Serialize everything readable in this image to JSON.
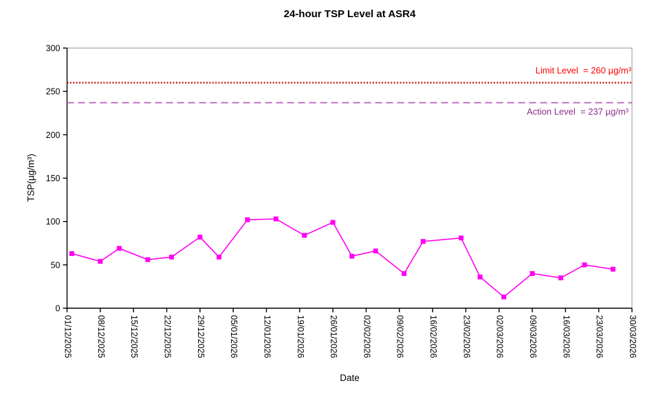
{
  "chart_data": {
    "type": "line",
    "title": "24-hour TSP Level at ASR4",
    "xlabel": "Date",
    "ylabel": "TSP(µg/m³)",
    "ylim": [
      0,
      300
    ],
    "yticks": [
      0,
      50,
      100,
      150,
      200,
      250,
      300
    ],
    "xtick_labels": [
      "01/12/2025",
      "08/12/2025",
      "15/12/2025",
      "22/12/2025",
      "29/12/2025",
      "05/01/2026",
      "12/01/2026",
      "19/01/2026",
      "26/01/2026",
      "02/02/2026",
      "09/02/2026",
      "16/02/2026",
      "23/02/2026",
      "02/03/2026",
      "09/03/2026",
      "16/03/2026",
      "23/03/2026",
      "30/03/2026"
    ],
    "x_axis": {
      "start": "01/12/2025",
      "end": "30/03/2026",
      "span_days": 119,
      "tick_interval_days": 7
    },
    "grid": false,
    "legend": false,
    "reference_lines": [
      {
        "name": "Limit Level",
        "value": 260,
        "label": "Limit Level  = 260 µg/m³",
        "style": "dotted",
        "line_color": "#C00000",
        "text_color": "#FF0000"
      },
      {
        "name": "Action Level",
        "value": 237,
        "label": "Action Level  = 237 µg/m³",
        "style": "dashed",
        "line_color": "#B35FB8",
        "text_color": "#8E2E8E"
      }
    ],
    "series": [
      {
        "name": "24-hour TSP",
        "color": "#FF00F0",
        "marker": "square",
        "points": [
          {
            "date": "02/12/2025",
            "day": 1,
            "value": 63
          },
          {
            "date": "08/12/2025",
            "day": 7,
            "value": 54
          },
          {
            "date": "12/12/2025",
            "day": 11,
            "value": 69
          },
          {
            "date": "18/12/2025",
            "day": 17,
            "value": 56
          },
          {
            "date": "23/12/2025",
            "day": 22,
            "value": 59
          },
          {
            "date": "29/12/2025",
            "day": 28,
            "value": 82
          },
          {
            "date": "02/01/2026",
            "day": 32,
            "value": 59
          },
          {
            "date": "08/01/2026",
            "day": 38,
            "value": 102
          },
          {
            "date": "14/01/2026",
            "day": 44,
            "value": 103
          },
          {
            "date": "20/01/2026",
            "day": 50,
            "value": 84
          },
          {
            "date": "26/01/2026",
            "day": 56,
            "value": 99
          },
          {
            "date": "30/01/2026",
            "day": 60,
            "value": 60
          },
          {
            "date": "04/02/2026",
            "day": 65,
            "value": 66
          },
          {
            "date": "10/02/2026",
            "day": 71,
            "value": 40
          },
          {
            "date": "14/02/2026",
            "day": 75,
            "value": 77
          },
          {
            "date": "22/02/2026",
            "day": 83,
            "value": 81
          },
          {
            "date": "26/02/2026",
            "day": 87,
            "value": 36
          },
          {
            "date": "03/03/2026",
            "day": 92,
            "value": 13
          },
          {
            "date": "09/03/2026",
            "day": 98,
            "value": 40
          },
          {
            "date": "15/03/2026",
            "day": 104,
            "value": 35
          },
          {
            "date": "20/03/2026",
            "day": 109,
            "value": 50
          },
          {
            "date": "26/03/2026",
            "day": 115,
            "value": 45
          }
        ]
      }
    ]
  },
  "colors": {
    "axis": "#000000",
    "plot_border": "#A6A6A6",
    "background": "#FFFFFF"
  }
}
